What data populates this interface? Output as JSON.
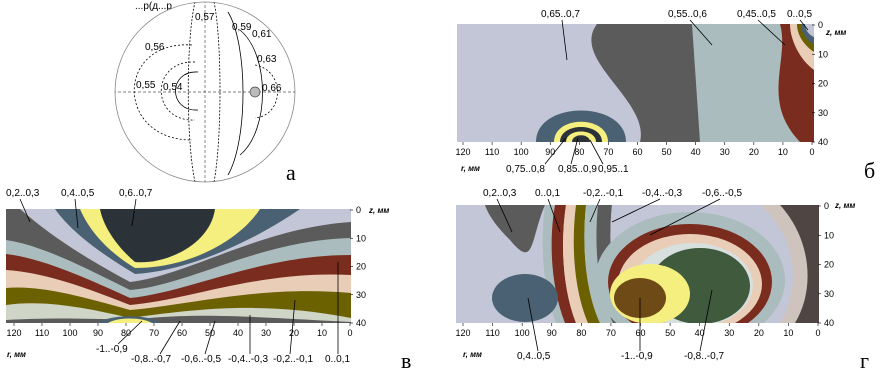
{
  "panel_a": {
    "letter": "а",
    "top_partial_text": "...р(д...р...",
    "isolines": [
      "0,57",
      "0,56",
      "0,59",
      "0,61",
      "0,63",
      "0,55",
      "0,54",
      "0,66"
    ]
  },
  "panel_b": {
    "letter": "б",
    "top_labels": [
      "0,65..0,7",
      "0,55..0,6",
      "0,45..0,5",
      "0..0,5"
    ],
    "bottom_labels": [
      "0,75..0,8",
      "0,85..0,9",
      "0,95..1"
    ],
    "z_label": "z, мм",
    "r_label": "r, мм",
    "x_ticks": [
      "120",
      "110",
      "100",
      "90",
      "80",
      "70",
      "60",
      "50",
      "40",
      "30",
      "20",
      "10",
      "0"
    ],
    "y_ticks": [
      "0",
      "10",
      "20",
      "30",
      "40"
    ]
  },
  "panel_v": {
    "letter": "в",
    "top_labels": [
      "0,2..0,3",
      "0,4..0,5",
      "0,6..0,7"
    ],
    "bottom_labels": [
      "-1..-0,9",
      "-0,8..-0,7",
      "-0,6..-0,5",
      "-0,4..-0,3",
      "-0,2..-0,1",
      "0..0,1"
    ],
    "z_label": "z, мм",
    "r_label": "r, мм",
    "x_ticks": [
      "120",
      "110",
      "100",
      "90",
      "80",
      "70",
      "60",
      "50",
      "40",
      "30",
      "20",
      "10",
      "0"
    ],
    "y_ticks": [
      "0",
      "10",
      "20",
      "30",
      "40"
    ]
  },
  "panel_g": {
    "letter": "г",
    "top_labels": [
      "0,2..0,3",
      "0..0,1",
      "-0,2..-0,1",
      "-0,4..-0,3",
      "-0,6..-0,5"
    ],
    "bottom_labels": [
      "0,4..0,5",
      "-1..-0,9",
      "-0,8..-0,7"
    ],
    "z_label": "z, мм",
    "r_label": "r, мм",
    "x_ticks": [
      "120",
      "110",
      "100",
      "90",
      "80",
      "70",
      "60",
      "50",
      "40",
      "30",
      "20",
      "10",
      "0"
    ],
    "y_ticks": [
      "0",
      "10",
      "20",
      "30",
      "40"
    ]
  },
  "colors": {
    "lavender": "#c3c6d6",
    "dark_gray": "#5b5b5b",
    "slate": "#4a6173",
    "light_blue": "#aabcbd",
    "brown": "#7a2c1e",
    "peach": "#e9cdb7",
    "olive": "#6b6100",
    "yellow": "#f4ef7e",
    "near_black": "#2b3338",
    "mauve": "#cfc3bd",
    "green": "#3f5a3d",
    "pale": "#d7dfdf"
  }
}
